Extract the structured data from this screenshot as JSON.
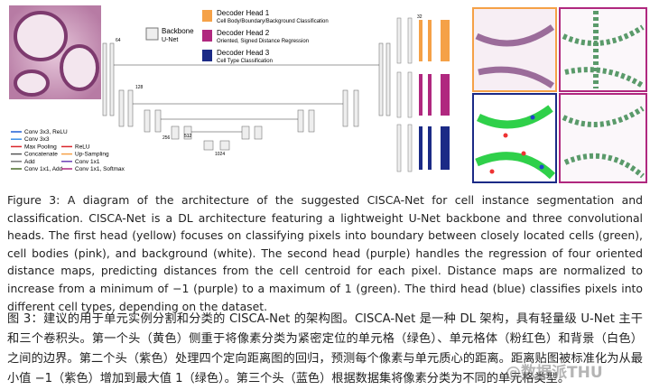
{
  "figure": {
    "legend_top": {
      "backbone": "Backbone",
      "backbone_sub": "U-Net",
      "head1": "Decoder Head 1",
      "head1_sub": "Cell Body/Boundary/Background Classification",
      "head2": "Decoder Head 2",
      "head2_sub": "Oriented, Signed Distance Regression",
      "head3": "Decoder Head 3",
      "head3_sub": "Cell Type Classification"
    },
    "legend_ops": [
      "Conv 3x3, ReLU",
      "Conv 3x3",
      "Max Pooling",
      "Concatenate",
      "Add",
      "Conv 1x1, Add",
      "ReLU",
      "Up-Sampling",
      "Conv 1x1",
      "Conv 1x1, Softmax"
    ],
    "channel_labels": [
      "32",
      "64",
      "128",
      "256",
      "512",
      "1024"
    ]
  },
  "caption": {
    "en": "Figure 3: A diagram of the architecture of the suggested CISCA-Net for cell instance segmentation and classification. CISCA-Net is a DL architecture featuring a lightweight U-Net backbone and three convolutional heads. The first head (yellow) focuses on classifying pixels into boundary between closely located cells (green), cell bodies (pink), and background (white). The second head (purple) handles the regression of four oriented distance maps, predicting distances from the cell centroid for each pixel. Distance maps are normalized to increase from a minimum of −1 (purple) to a maximum of 1 (green). The third head (blue) classifies pixels into different cell types, depending on the dataset.",
    "zh": "图 3：建议的用于单元实例分割和分类的 CISCA-Net 的架构图。CISCA-Net 是一种 DL 架构，具有轻量级 U-Net 主干和三个卷积头。第一个头（黄色）侧重于将像素分类为紧密定位的单元格（绿色）、单元格体（粉红色）和背景（白色）之间的边界。第二个头（紫色）处理四个定向距离图的回归，预测每个像素与单元质心的距离。距离贴图被标准化为从最小值 −1（紫色）增加到最大值 1（绿色）。第三个头（蓝色）根据数据集将像素分类为不同的单元格类型。"
  },
  "watermark": "@数据派THU"
}
